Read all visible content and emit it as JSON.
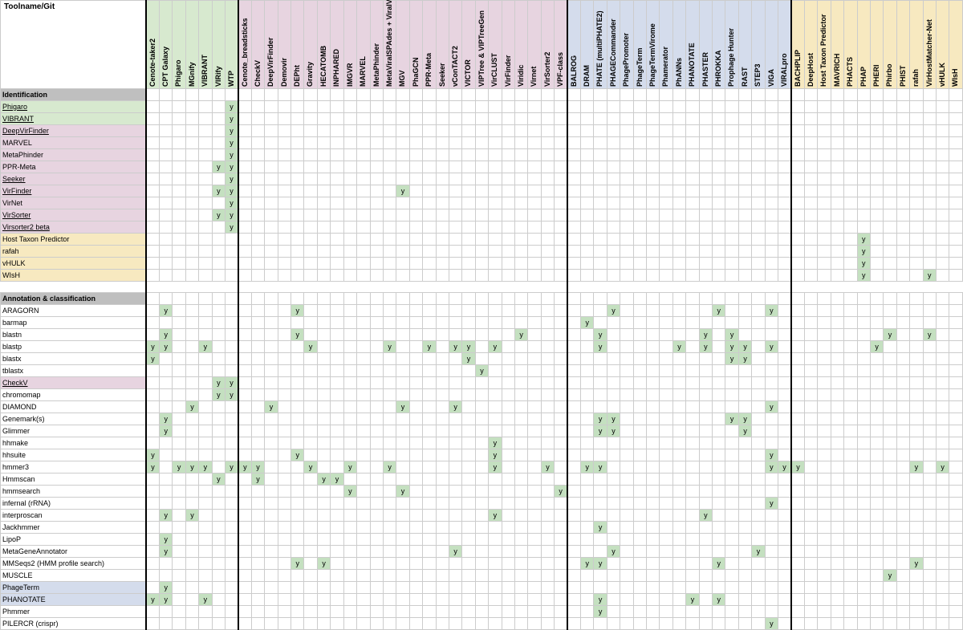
{
  "corner_label": "Toolname/Git",
  "cell_mark": "y",
  "colors": {
    "green": "#d7e9cf",
    "pink": "#e7d4e0",
    "blue": "#d4dcec",
    "yellow": "#f7e9c0",
    "grey": "#bfbfbf",
    "on": "#c4e0c0",
    "border": "#cccccc",
    "vline": "#000000"
  },
  "col_groups": [
    {
      "color": "green",
      "end_vline": true,
      "cols": [
        "Cenote-taker2",
        "CPT Galaxy",
        "Phigaro",
        "MGnify",
        "VIBRANT",
        "VIRify",
        "WTP"
      ]
    },
    {
      "color": "pink",
      "end_vline": true,
      "cols": [
        "Cenote_breadsticks",
        "CheckV",
        "DeepVirFinder",
        "Demovir",
        "DEPht",
        "Gravity",
        "HECATOMB",
        "INPHARED",
        "IMGVR",
        "MARVEL",
        "MetaPhinder",
        "MetaViralSPAdes + ViralVerify + viralComplete",
        "MGV",
        "PhaGCN",
        "PPR-Meta",
        "Seeker",
        "vConTACT2",
        "VICTOR",
        "VIPTree & VIPTreeGen",
        "VirCLUST",
        "VirFinder",
        "Viridic",
        "Virnet",
        "VirSorter2",
        "VPF-class"
      ]
    },
    {
      "color": "blue",
      "end_vline": true,
      "cols": [
        "BALROG",
        "DRAM",
        "PHATE (multiPHATE2)",
        "PHAGECommander",
        "PhagePromoter",
        "PhageTerm",
        "PhageTermVirome",
        "Phamerator",
        "PhANNs",
        "PHANOTATE",
        "PHASTER",
        "PHROKKA",
        "Prophage Hunter",
        "RAST",
        "STEP3",
        "VIGA",
        "VIRALpro"
      ]
    },
    {
      "color": "yellow",
      "end_vline": false,
      "cols": [
        "BACHPLIP",
        "DeepHost",
        "Host Taxon Predictor",
        "MAVRICH",
        "PHACTS",
        "PHAP",
        "PHERI",
        "Phirbo",
        "PHIST",
        "rafah",
        "VirHostMatcher-Net",
        "vHULK",
        "WIsH"
      ]
    }
  ],
  "columns_flat": [
    "Cenote-taker2",
    "CPT Galaxy",
    "Phigaro",
    "MGnify",
    "VIBRANT",
    "VIRify",
    "WTP",
    "Cenote_breadsticks",
    "CheckV",
    "DeepVirFinder",
    "Demovir",
    "DEPht",
    "Gravity",
    "HECATOMB",
    "INPHARED",
    "IMGVR",
    "MARVEL",
    "MetaPhinder",
    "MetaViralSPAdes + ViralVerify + viralComplete",
    "MGV",
    "PhaGCN",
    "PPR-Meta",
    "Seeker",
    "vConTACT2",
    "VICTOR",
    "VIPTree & VIPTreeGen",
    "VirCLUST",
    "VirFinder",
    "Viridic",
    "Virnet",
    "VirSorter2",
    "VPF-class",
    "BALROG",
    "DRAM",
    "PHATE (multiPHATE2)",
    "PHAGECommander",
    "PhagePromoter",
    "PhageTerm",
    "PhageTermVirome",
    "Phamerator",
    "PhANNs",
    "PHANOTATE",
    "PHASTER",
    "PHROKKA",
    "Prophage Hunter",
    "RAST",
    "STEP3",
    "VIGA",
    "VIRALpro",
    "BACHPLIP",
    "DeepHost",
    "Host Taxon Predictor",
    "MAVRICH",
    "PHACTS",
    "PHAP",
    "PHERI",
    "Phirbo",
    "PHIST",
    "rafah",
    "VirHostMatcher-Net",
    "vHULK",
    "WIsH"
  ],
  "rows": [
    {
      "type": "section",
      "label": "Identification",
      "label_color": "grey"
    },
    {
      "label": "Phigaro",
      "label_color": "green",
      "underline": true,
      "on": [
        "WTP"
      ]
    },
    {
      "label": "VIBRANT",
      "label_color": "green",
      "underline": true,
      "on": [
        "WTP"
      ]
    },
    {
      "label": "DeepVirFinder",
      "label_color": "pink",
      "underline": true,
      "on": [
        "WTP"
      ]
    },
    {
      "label": "MARVEL",
      "label_color": "pink",
      "on": [
        "WTP"
      ]
    },
    {
      "label": "MetaPhinder",
      "label_color": "pink",
      "on": [
        "WTP"
      ]
    },
    {
      "label": "PPR-Meta",
      "label_color": "pink",
      "on": [
        "VIRify",
        "WTP"
      ]
    },
    {
      "label": "Seeker",
      "label_color": "pink",
      "underline": true,
      "on": [
        "WTP"
      ]
    },
    {
      "label": "VirFinder",
      "label_color": "pink",
      "underline": true,
      "on": [
        "VIRify",
        "WTP",
        "MGV"
      ]
    },
    {
      "label": "VirNet",
      "label_color": "pink",
      "on": [
        "WTP"
      ]
    },
    {
      "label": "VirSorter",
      "label_color": "pink",
      "underline": true,
      "on": [
        "VIRify",
        "WTP"
      ]
    },
    {
      "label": "Virsorter2 beta",
      "label_color": "pink",
      "underline": true,
      "on": [
        "WTP"
      ]
    },
    {
      "label": "Host Taxon Predictor",
      "label_color": "yellow",
      "on": [
        "PHAP"
      ]
    },
    {
      "label": "rafah",
      "label_color": "yellow",
      "on": [
        "PHAP"
      ]
    },
    {
      "label": "vHULK",
      "label_color": "yellow",
      "on": [
        "PHAP"
      ]
    },
    {
      "label": "WIsH",
      "label_color": "yellow",
      "on": [
        "PHAP",
        "VirHostMatcher-Net"
      ]
    },
    {
      "type": "spacer"
    },
    {
      "type": "section",
      "label": "Annotation & classification",
      "label_color": "grey"
    },
    {
      "label": "ARAGORN",
      "on": [
        "CPT Galaxy",
        "DEPht",
        "PHAGECommander",
        "PHROKKA",
        "VIGA"
      ]
    },
    {
      "label": "barmap",
      "on": [
        "DRAM"
      ]
    },
    {
      "label": "blastn",
      "on": [
        "CPT Galaxy",
        "DEPht",
        "Viridic",
        "PHATE (multiPHATE2)",
        "PHASTER",
        "Prophage Hunter",
        "Phirbo",
        "VirHostMatcher-Net"
      ]
    },
    {
      "label": "blastp",
      "on": [
        "Cenote-taker2",
        "CPT Galaxy",
        "VIBRANT",
        "Gravity",
        "MetaViralSPAdes + ViralVerify + viralComplete",
        "PPR-Meta",
        "vConTACT2",
        "VICTOR",
        "VirCLUST",
        "PHATE (multiPHATE2)",
        "PhANNs",
        "PHASTER",
        "Prophage Hunter",
        "RAST",
        "VIGA",
        "PHERI"
      ]
    },
    {
      "label": "blastx",
      "on": [
        "Cenote-taker2",
        "VICTOR",
        "Prophage Hunter",
        "RAST"
      ]
    },
    {
      "label": "tblastx",
      "on": [
        "VIPTree & VIPTreeGen"
      ]
    },
    {
      "label": "CheckV",
      "label_color": "pink",
      "underline": true,
      "on": [
        "VIRify",
        "WTP"
      ]
    },
    {
      "label": "chromomap",
      "on": [
        "VIRify",
        "WTP"
      ]
    },
    {
      "label": "DIAMOND",
      "on": [
        "MGnify",
        "DeepVirFinder",
        "MGV",
        "vConTACT2",
        "VIGA"
      ]
    },
    {
      "label": "Genemark(s)",
      "on": [
        "CPT Galaxy",
        "PHATE (multiPHATE2)",
        "PHAGECommander",
        "Prophage Hunter",
        "RAST"
      ]
    },
    {
      "label": "Glimmer",
      "on": [
        "CPT Galaxy",
        "PHATE (multiPHATE2)",
        "PHAGECommander",
        "RAST"
      ]
    },
    {
      "label": "hhmake",
      "on": [
        "VirCLUST"
      ]
    },
    {
      "label": "hhsuite",
      "on": [
        "Cenote-taker2",
        "DEPht",
        "VirCLUST",
        "VIGA"
      ]
    },
    {
      "label": "hmmer3",
      "on": [
        "Cenote-taker2",
        "Phigaro",
        "MGnify",
        "VIBRANT",
        "WTP",
        "Cenote_breadsticks",
        "CheckV",
        "Gravity",
        "IMGVR",
        "MetaViralSPAdes + ViralVerify + viralComplete",
        "VirCLUST",
        "VirSorter2",
        "DRAM",
        "PHATE (multiPHATE2)",
        "VIGA",
        "VIRALpro",
        "BACHPLIP",
        "rafah",
        "vHULK"
      ]
    },
    {
      "label": "Hmmscan",
      "on": [
        "VIRify",
        "CheckV",
        "HECATOMB",
        "INPHARED"
      ]
    },
    {
      "label": "hmmsearch",
      "on": [
        "IMGVR",
        "MGV",
        "VPF-class"
      ]
    },
    {
      "label": "infernal (rRNA)",
      "on": [
        "VIGA"
      ]
    },
    {
      "label": "interproscan",
      "on": [
        "CPT Galaxy",
        "MGnify",
        "VirCLUST",
        "PHASTER"
      ]
    },
    {
      "label": "Jackhmmer",
      "on": [
        "PHATE (multiPHATE2)"
      ]
    },
    {
      "label": "LipoP",
      "on": [
        "CPT Galaxy"
      ]
    },
    {
      "label": "MetaGeneAnnotator",
      "on": [
        "CPT Galaxy",
        "vConTACT2",
        "PHAGECommander",
        "STEP3"
      ]
    },
    {
      "label": "MMSeqs2 (HMM profile search)",
      "on": [
        "DEPht",
        "HECATOMB",
        "DRAM",
        "PHATE (multiPHATE2)",
        "PHROKKA",
        "rafah"
      ]
    },
    {
      "label": "MUSCLE",
      "on": [
        "Phirbo"
      ]
    },
    {
      "label": "PhageTerm",
      "label_color": "blue",
      "on": [
        "CPT Galaxy"
      ]
    },
    {
      "label": "PHANOTATE",
      "label_color": "blue",
      "on": [
        "Cenote-taker2",
        "CPT Galaxy",
        "VIBRANT",
        "PHATE (multiPHATE2)",
        "PHANOTATE",
        "PHROKKA"
      ]
    },
    {
      "label": "Phmmer",
      "on": [
        "PHATE (multiPHATE2)"
      ]
    },
    {
      "label": "PILERCR (crispr)",
      "on": [
        "VIGA"
      ]
    }
  ]
}
